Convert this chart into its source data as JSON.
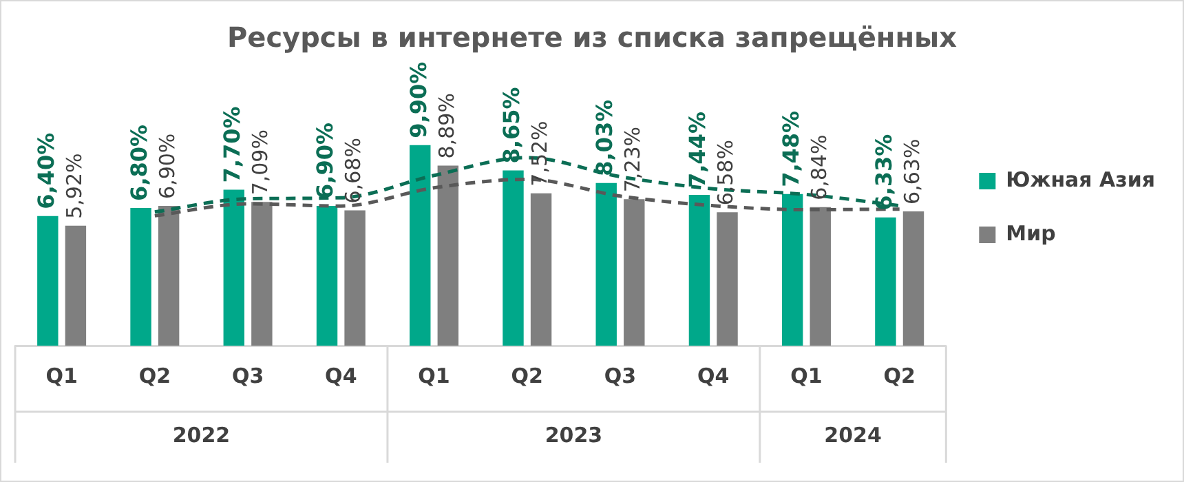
{
  "chart_data": {
    "type": "bar",
    "title": "Ресурсы в интернете из списка запрещённых",
    "categories": [
      "Q1",
      "Q2",
      "Q3",
      "Q4",
      "Q1",
      "Q2",
      "Q3",
      "Q4",
      "Q1",
      "Q2"
    ],
    "series": [
      {
        "name": "Южная Азия",
        "color": "#00a88a",
        "values": [
          6.4,
          6.8,
          7.7,
          6.9,
          9.9,
          8.65,
          8.03,
          7.44,
          7.48,
          6.33
        ],
        "value_labels": [
          "6,40%",
          "6,80%",
          "7,70%",
          "6,90%",
          "9,90%",
          "8,65%",
          "8,03%",
          "7,44%",
          "7,48%",
          "6,33%"
        ]
      },
      {
        "name": "Мир",
        "color": "#7f7f7f",
        "values": [
          5.92,
          6.9,
          7.09,
          6.68,
          8.89,
          7.52,
          7.23,
          6.58,
          6.84,
          6.63
        ],
        "value_labels": [
          "5,92%",
          "6,90%",
          "7,09%",
          "6,68%",
          "8,89%",
          "7,52%",
          "7,23%",
          "6,58%",
          "6,84%",
          "6,63%"
        ]
      },
      {
        "type": "line",
        "color": "#0b6e55",
        "line_style": "dashed",
        "values": [
          null,
          6.6,
          7.25,
          7.3,
          8.4,
          9.28,
          8.34,
          7.74,
          7.46,
          6.91
        ]
      },
      {
        "type": "line",
        "color": "#595959",
        "line_style": "dashed",
        "values": [
          null,
          6.41,
          7.0,
          6.89,
          7.79,
          8.21,
          7.38,
          6.91,
          6.71,
          6.74
        ]
      }
    ],
    "annotations": [
      "2022",
      "2023",
      "2024"
    ],
    "legend": "right",
    "grid": false
  }
}
